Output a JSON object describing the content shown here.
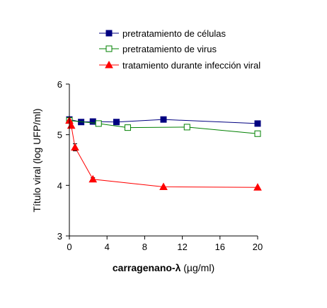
{
  "chart_data": {
    "type": "line",
    "xlabel_bold": "carragenano-λ",
    "xlabel_rest": " (µg/ml)",
    "ylabel": "Título viral (log UFP/ml)",
    "xlim": [
      0,
      20
    ],
    "ylim": [
      3,
      6
    ],
    "xticks": [
      0,
      4,
      8,
      12,
      16,
      20
    ],
    "yticks": [
      3,
      4,
      5,
      6
    ],
    "grid": false,
    "legend_position": "top",
    "series": [
      {
        "name": "pretratamiento de células",
        "color": "#000080",
        "marker": "square-filled",
        "x": [
          0,
          1.25,
          2.5,
          5,
          10,
          20
        ],
        "y": [
          5.3,
          5.25,
          5.26,
          5.25,
          5.3,
          5.22
        ],
        "error": [
          0,
          0,
          0,
          0,
          0,
          0
        ]
      },
      {
        "name": "pretratamiento de virus",
        "color": "#008000",
        "marker": "square-open",
        "x": [
          0,
          3.1,
          6.2,
          12.5,
          20
        ],
        "y": [
          5.28,
          5.22,
          5.14,
          5.15,
          5.02
        ],
        "error": [
          0,
          0,
          0,
          0,
          0
        ]
      },
      {
        "name": "tratamiento durante infección viral",
        "color": "#ff0000",
        "marker": "triangle-filled",
        "x": [
          0,
          0.2,
          0.6,
          2.5,
          10,
          20
        ],
        "y": [
          5.28,
          5.18,
          4.75,
          4.12,
          3.97,
          3.96
        ],
        "error": [
          0,
          0,
          0.07,
          0.03,
          0,
          0
        ]
      }
    ]
  }
}
